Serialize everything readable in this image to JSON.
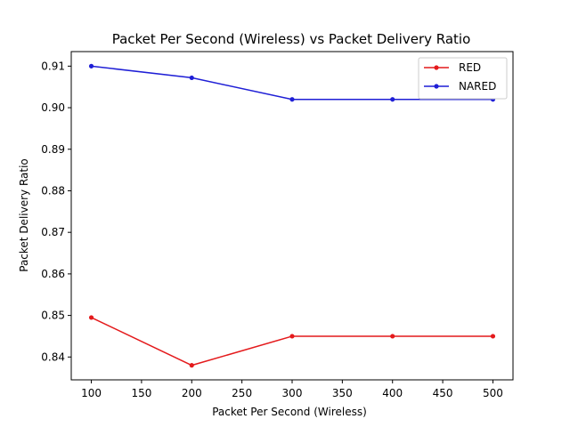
{
  "chart_data": {
    "type": "line",
    "title": "Packet Per Second (Wireless)  vs Packet Delivery Ratio",
    "xlabel": "Packet Per Second (Wireless)",
    "ylabel": "Packet Delivery Ratio",
    "x": [
      100,
      200,
      300,
      400,
      500
    ],
    "xlim": [
      80,
      520
    ],
    "ylim": [
      0.8345,
      0.9135
    ],
    "xticks": [
      "100",
      "150",
      "200",
      "250",
      "300",
      "350",
      "400",
      "450",
      "500"
    ],
    "yticks": [
      "0.84",
      "0.85",
      "0.86",
      "0.87",
      "0.88",
      "0.89",
      "0.90",
      "0.91"
    ],
    "grid": false,
    "legend": "top-right",
    "series": [
      {
        "name": "RED",
        "color": "#e41a1c",
        "values": [
          0.8495,
          0.838,
          0.845,
          0.845,
          0.845
        ]
      },
      {
        "name": "NARED",
        "color": "#1f1fd6",
        "values": [
          0.91,
          0.9072,
          0.902,
          0.902,
          0.902
        ]
      }
    ]
  }
}
